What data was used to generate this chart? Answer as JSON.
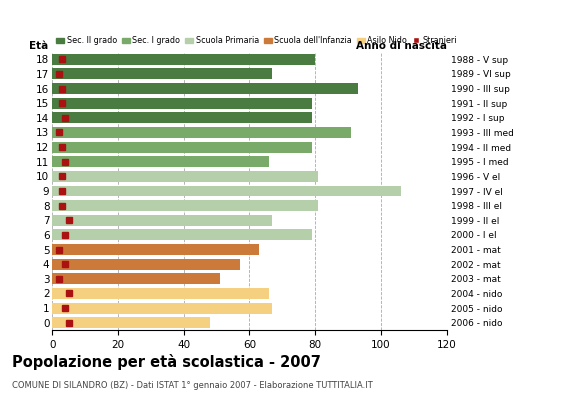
{
  "ages": [
    18,
    17,
    16,
    15,
    14,
    13,
    12,
    11,
    10,
    9,
    8,
    7,
    6,
    5,
    4,
    3,
    2,
    1,
    0
  ],
  "values": [
    80,
    67,
    93,
    79,
    79,
    91,
    79,
    66,
    81,
    106,
    81,
    67,
    79,
    63,
    57,
    51,
    66,
    67,
    48
  ],
  "stranieri": [
    3,
    2,
    3,
    3,
    4,
    2,
    3,
    4,
    3,
    3,
    3,
    5,
    4,
    2,
    4,
    2,
    5,
    4,
    5
  ],
  "bar_colors": [
    "#4a7c42",
    "#4a7c42",
    "#4a7c42",
    "#4a7c42",
    "#4a7c42",
    "#7aaa6a",
    "#7aaa6a",
    "#7aaa6a",
    "#b5cfaa",
    "#b5cfaa",
    "#b5cfaa",
    "#b5cfaa",
    "#b5cfaa",
    "#cc7a3a",
    "#cc7a3a",
    "#cc7a3a",
    "#f5d080",
    "#f5d080",
    "#f5d080"
  ],
  "right_labels": [
    "1988 - V sup",
    "1989 - VI sup",
    "1990 - III sup",
    "1991 - II sup",
    "1992 - I sup",
    "1993 - III med",
    "1994 - II med",
    "1995 - I med",
    "1996 - V el",
    "1997 - IV el",
    "1998 - III el",
    "1999 - II el",
    "2000 - I el",
    "2001 - mat",
    "2002 - mat",
    "2003 - mat",
    "2004 - nido",
    "2005 - nido",
    "2006 - nido"
  ],
  "legend_labels": [
    "Sec. II grado",
    "Sec. I grado",
    "Scuola Primaria",
    "Scuola dell'Infanzia",
    "Asilo Nido",
    "Stranieri"
  ],
  "legend_colors": [
    "#4a7c42",
    "#7aaa6a",
    "#b5cfaa",
    "#cc7a3a",
    "#f5d080",
    "#aa1111"
  ],
  "title": "Popolazione per età scolastica - 2007",
  "subtitle": "COMUNE DI SILANDRO (BZ) - Dati ISTAT 1° gennaio 2007 - Elaborazione TUTTITALIA.IT",
  "xlabel_age": "Età",
  "xlabel_year": "Anno di nascita",
  "xlim": [
    0,
    120
  ],
  "xticks": [
    0,
    20,
    40,
    60,
    80,
    100,
    120
  ],
  "stranieri_color": "#aa1111",
  "background_color": "#ffffff",
  "grid_color": "#aaaaaa"
}
